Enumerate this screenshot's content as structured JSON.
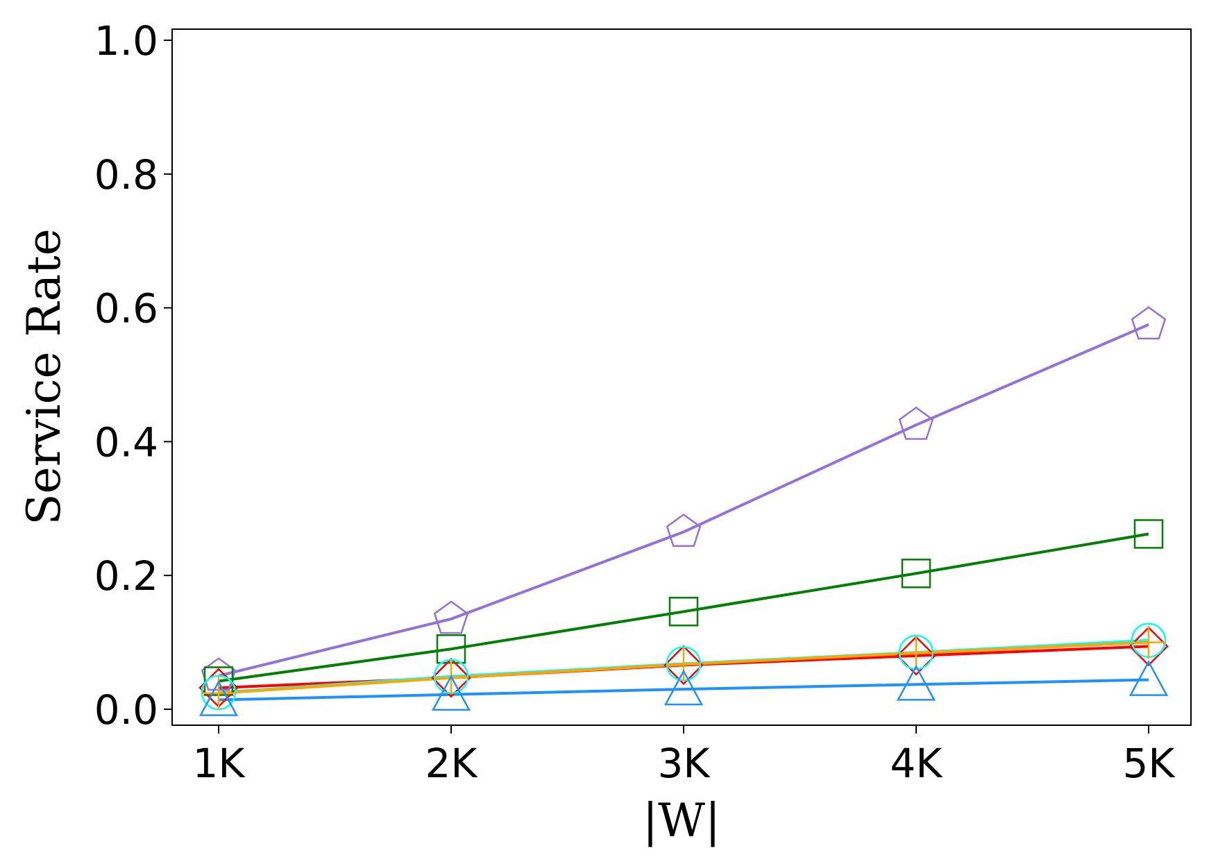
{
  "chart_data": {
    "type": "line",
    "xlabel": "|W|",
    "ylabel": "Service Rate",
    "categories": [
      "1K",
      "2K",
      "3K",
      "4K",
      "5K"
    ],
    "ylim": [
      0,
      1.02
    ],
    "yticks": [
      "0.0",
      "0.2",
      "0.4",
      "0.6",
      "0.8",
      "1.0"
    ],
    "grid": false,
    "series": [
      {
        "color": "#9370DB",
        "marker": "pentagon",
        "values": [
          0.05,
          0.135,
          0.265,
          0.425,
          0.575
        ]
      },
      {
        "color": "#008000",
        "marker": "square",
        "values": [
          0.042,
          0.09,
          0.146,
          0.203,
          0.262
        ]
      },
      {
        "color": "#FF0000",
        "marker": "diamond",
        "values": [
          0.032,
          0.047,
          0.066,
          0.08,
          0.094
        ]
      },
      {
        "color": "#00FFFF",
        "marker": "circle",
        "values": [
          0.025,
          0.049,
          0.068,
          0.085,
          0.103
        ]
      },
      {
        "color": "#FFA500",
        "marker": "plus",
        "values": [
          0.024,
          0.047,
          0.067,
          0.084,
          0.1
        ]
      },
      {
        "color": "#1E90FF",
        "marker": "triangle",
        "values": [
          0.014,
          0.022,
          0.03,
          0.037,
          0.044
        ]
      }
    ]
  }
}
